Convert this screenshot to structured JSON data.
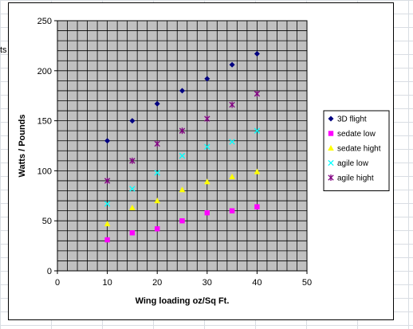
{
  "sheet": {
    "cut_text": "ts"
  },
  "chart_data": {
    "type": "scatter",
    "title": "",
    "xlabel": "Wing loading oz/Sq Ft.",
    "ylabel": "Watts / Pounds",
    "xlim": [
      0,
      50
    ],
    "ylim": [
      0,
      250
    ],
    "x_ticks": [
      0,
      10,
      20,
      30,
      40,
      50
    ],
    "y_ticks": [
      0,
      50,
      100,
      150,
      200,
      250
    ],
    "grid": "on",
    "plot_background": "#c0c0c0",
    "legend_position": "right",
    "series": [
      {
        "name": "3D flight",
        "marker": "diamond",
        "color": "#000080",
        "x": [
          10,
          15,
          20,
          25,
          30,
          35,
          40
        ],
        "y": [
          130,
          150,
          167,
          180,
          192,
          206,
          217
        ]
      },
      {
        "name": "sedate low",
        "marker": "square",
        "color": "#ff00ff",
        "x": [
          10,
          15,
          20,
          25,
          30,
          35,
          40
        ],
        "y": [
          31,
          38,
          42,
          50,
          58,
          60,
          64
        ]
      },
      {
        "name": "sedate hight",
        "marker": "triangle",
        "color": "#ffff00",
        "x": [
          10,
          15,
          20,
          25,
          30,
          35,
          40
        ],
        "y": [
          47,
          63,
          70,
          81,
          89,
          94,
          99
        ]
      },
      {
        "name": "agile low",
        "marker": "x",
        "color": "#00ffff",
        "x": [
          10,
          15,
          20,
          25,
          30,
          35,
          40
        ],
        "y": [
          67,
          82,
          98,
          115,
          124,
          129,
          140
        ]
      },
      {
        "name": "agile hight",
        "marker": "star",
        "color": "#800080",
        "x": [
          10,
          15,
          20,
          25,
          30,
          35,
          40
        ],
        "y": [
          90,
          110,
          127,
          140,
          152,
          166,
          177
        ]
      }
    ]
  }
}
